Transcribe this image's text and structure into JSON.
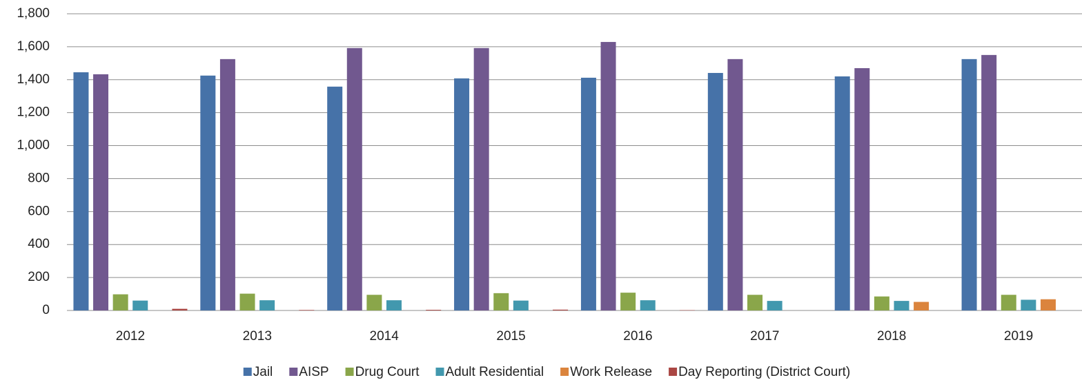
{
  "chart_data": {
    "type": "bar",
    "categories": [
      "2012",
      "2013",
      "2014",
      "2015",
      "2016",
      "2017",
      "2018",
      "2019"
    ],
    "series": [
      {
        "name": "Jail",
        "color": "#4672a8",
        "values": [
          1445,
          1425,
          1358,
          1408,
          1412,
          1441,
          1420,
          1525
        ]
      },
      {
        "name": "AISP",
        "color": "#71588f",
        "values": [
          1433,
          1525,
          1592,
          1592,
          1629,
          1525,
          1470,
          1550
        ]
      },
      {
        "name": "Drug Court",
        "color": "#8aa64a",
        "values": [
          98,
          102,
          95,
          105,
          108,
          95,
          85,
          95
        ]
      },
      {
        "name": "Adult Residential",
        "color": "#4298ae",
        "values": [
          60,
          62,
          62,
          60,
          62,
          58,
          58,
          65
        ]
      },
      {
        "name": "Work Release",
        "color": "#db843d",
        "values": [
          0,
          0,
          0,
          0,
          0,
          0,
          52,
          68
        ]
      },
      {
        "name": "Day Reporting (District Court)",
        "color": "#aa4643",
        "values": [
          10,
          3,
          4,
          5,
          2,
          0,
          0,
          0
        ]
      }
    ],
    "ylim": [
      0,
      1800
    ],
    "yticks": [
      0,
      200,
      400,
      600,
      800,
      {
        "value": 1000,
        "label": "1,000"
      },
      {
        "value": 1200,
        "label": "1,200"
      },
      {
        "value": 1400,
        "label": "1,400"
      },
      {
        "value": 1600,
        "label": "1,600"
      },
      {
        "value": 1800,
        "label": "1,800"
      }
    ],
    "grid": true,
    "legend": "bottom"
  }
}
